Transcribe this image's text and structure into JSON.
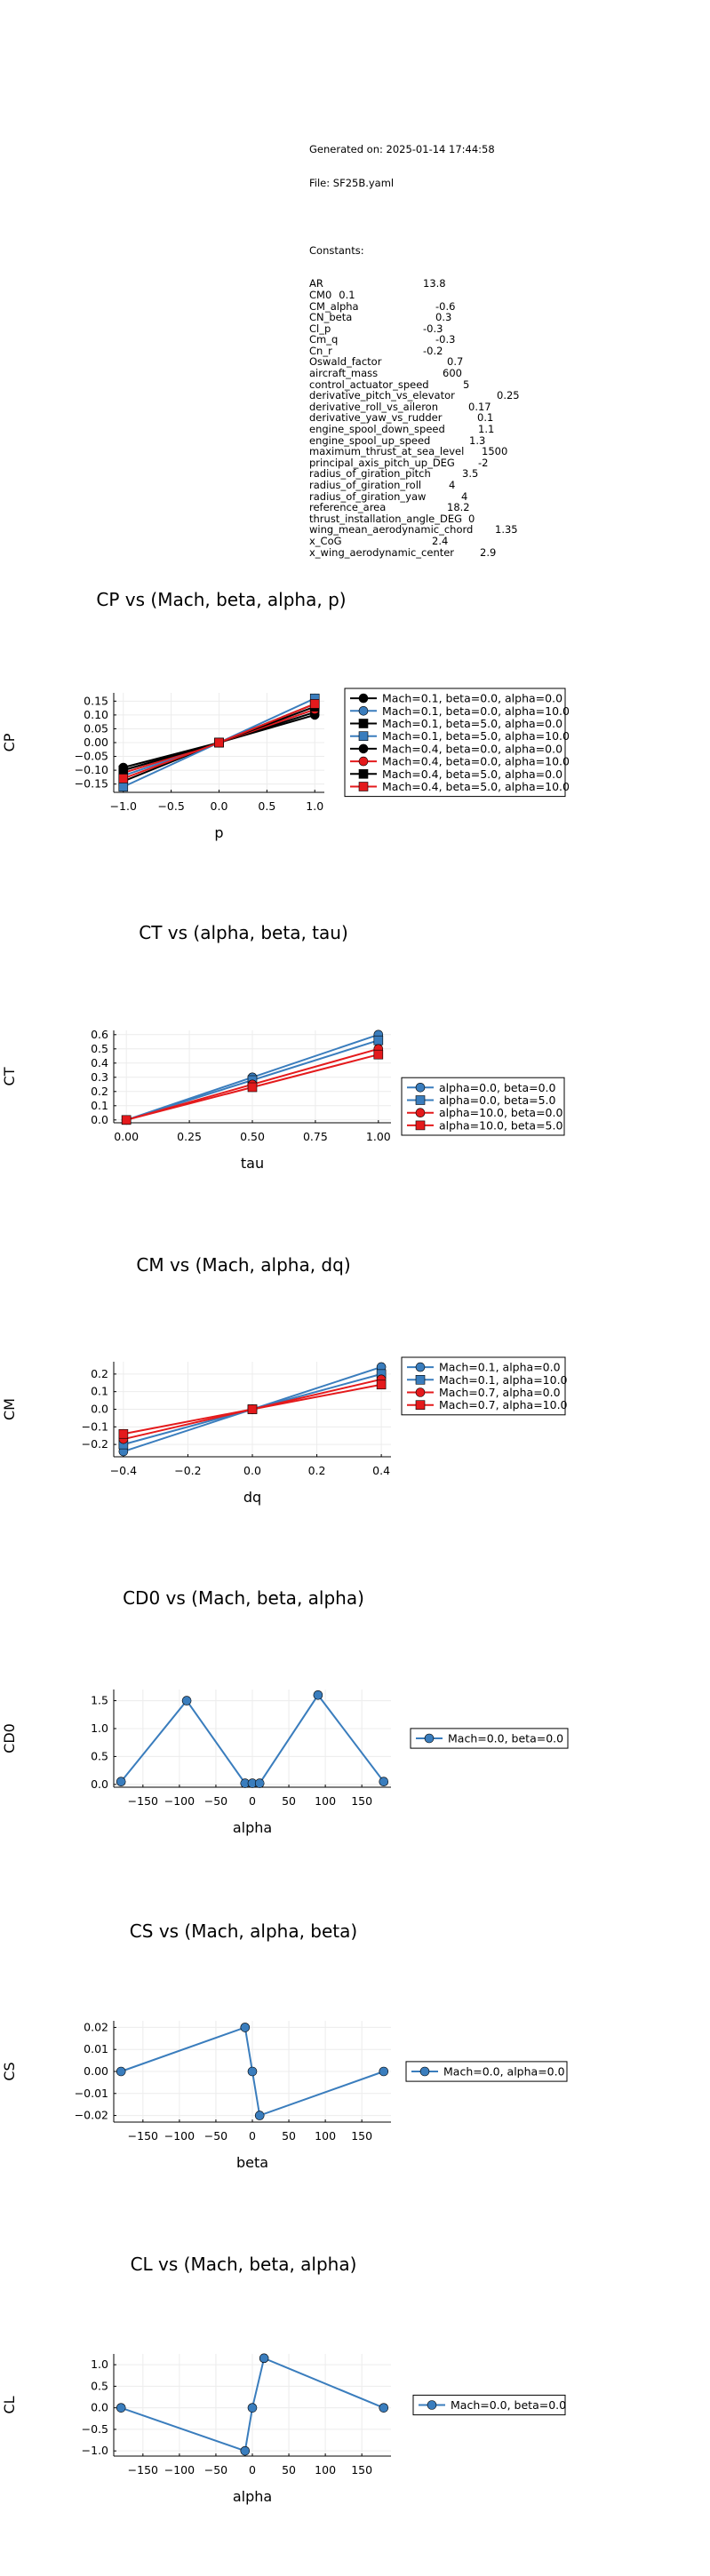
{
  "header": {
    "generated_line": "Generated on: 2025-01-14 17:44:58",
    "file_line": "File: SF25B.yaml",
    "constants_title": "Constants:",
    "constants": [
      {
        "name": "AR",
        "value": "13.8"
      },
      {
        "name": "CM0",
        "value": "0.1"
      },
      {
        "name": "CM_alpha",
        "value": "-0.6"
      },
      {
        "name": "CN_beta",
        "value": "0.3"
      },
      {
        "name": "Cl_p",
        "value": "-0.3"
      },
      {
        "name": "Cm_q",
        "value": "-0.3"
      },
      {
        "name": "Cn_r",
        "value": "-0.2"
      },
      {
        "name": "Oswald_factor",
        "value": "0.7"
      },
      {
        "name": "aircraft_mass",
        "value": "600"
      },
      {
        "name": "control_actuator_speed",
        "value": "5"
      },
      {
        "name": "derivative_pitch_vs_elevator",
        "value": "0.25"
      },
      {
        "name": "derivative_roll_vs_aileron",
        "value": "0.17"
      },
      {
        "name": "derivative_yaw_vs_rudder",
        "value": "0.1"
      },
      {
        "name": "engine_spool_down_speed",
        "value": "1.1"
      },
      {
        "name": "engine_spool_up_speed",
        "value": "1.3"
      },
      {
        "name": "maximum_thrust_at_sea_level",
        "value": "1500"
      },
      {
        "name": "principal_axis_pitch_up_DEG",
        "value": "-2"
      },
      {
        "name": "radius_of_giration_pitch",
        "value": "3.5"
      },
      {
        "name": "radius_of_giration_roll",
        "value": "4"
      },
      {
        "name": "radius_of_giration_yaw",
        "value": "4"
      },
      {
        "name": "reference_area",
        "value": "18.2"
      },
      {
        "name": "thrust_installation_angle_DEG",
        "value": "0"
      },
      {
        "name": "wing_mean_aerodynamic_chord",
        "value": "1.35"
      },
      {
        "name": "x_CoG",
        "value": "2.4"
      },
      {
        "name": "x_wing_aerodynamic_center",
        "value": "2.9"
      }
    ]
  },
  "colors": {
    "blue": "#3a7dbd",
    "red": "#e41a1c",
    "grid": "#ececec"
  },
  "chart_data": [
    {
      "type": "line",
      "title": "CP vs (Mach, beta, alpha, p)",
      "xlabel": "p",
      "ylabel": "CP",
      "xlim": [
        -1.1,
        1.1
      ],
      "ylim": [
        -0.18,
        0.18
      ],
      "xticks": [
        -1.0,
        -0.5,
        0.0,
        0.5,
        1.0
      ],
      "xtick_labels": [
        "−1.0",
        "−0.5",
        "0.0",
        "0.5",
        "1.0"
      ],
      "yticks": [
        -0.15,
        -0.1,
        -0.05,
        0.0,
        0.05,
        0.1,
        0.15
      ],
      "ytick_labels": [
        "−0.15",
        "−0.10",
        "−0.05",
        "0.00",
        "0.05",
        "0.10",
        "0.15"
      ],
      "legend": "outside-right-top",
      "x": [
        -1.0,
        0.0,
        1.0
      ],
      "series": [
        {
          "name": "Mach=0.1, beta=0.0, alpha=0.0",
          "color": "#000000",
          "marker": "circle",
          "values": [
            -0.1,
            0.0,
            0.1
          ]
        },
        {
          "name": "Mach=0.1, beta=0.0, alpha=10.0",
          "color": "#3a7dbd",
          "marker": "circle",
          "values": [
            -0.12,
            0.0,
            0.12
          ]
        },
        {
          "name": "Mach=0.1, beta=5.0, alpha=0.0",
          "color": "#000000",
          "marker": "square",
          "values": [
            -0.14,
            0.0,
            0.14
          ]
        },
        {
          "name": "Mach=0.1, beta=5.0, alpha=10.0",
          "color": "#3a7dbd",
          "marker": "square",
          "values": [
            -0.16,
            0.0,
            0.16
          ]
        },
        {
          "name": "Mach=0.4, beta=0.0, alpha=0.0",
          "color": "#000000",
          "marker": "circle",
          "values": [
            -0.09,
            0.0,
            0.11
          ]
        },
        {
          "name": "Mach=0.4, beta=0.0, alpha=10.0",
          "color": "#e41a1c",
          "marker": "circle",
          "values": [
            -0.11,
            0.0,
            0.12
          ]
        },
        {
          "name": "Mach=0.4, beta=5.0, alpha=0.0",
          "color": "#000000",
          "marker": "square",
          "values": [
            -0.1,
            0.0,
            0.13
          ]
        },
        {
          "name": "Mach=0.4, beta=5.0, alpha=10.0",
          "color": "#e41a1c",
          "marker": "square",
          "values": [
            -0.13,
            0.0,
            0.14
          ]
        }
      ]
    },
    {
      "type": "line",
      "title": "CT vs (alpha, beta, tau)",
      "xlabel": "tau",
      "ylabel": "CT",
      "xlim": [
        -0.05,
        1.05
      ],
      "ylim": [
        -0.02,
        0.63
      ],
      "xticks": [
        0.0,
        0.25,
        0.5,
        0.75,
        1.0
      ],
      "xtick_labels": [
        "0.00",
        "0.25",
        "0.50",
        "0.75",
        "1.00"
      ],
      "yticks": [
        0.0,
        0.1,
        0.2,
        0.3,
        0.4,
        0.5,
        0.6
      ],
      "ytick_labels": [
        "0.0",
        "0.1",
        "0.2",
        "0.3",
        "0.4",
        "0.5",
        "0.6"
      ],
      "legend": "outside-right-bottom",
      "x": [
        0.0,
        0.5,
        1.0
      ],
      "series": [
        {
          "name": "alpha=0.0, beta=0.0",
          "color": "#3a7dbd",
          "marker": "circle",
          "values": [
            0.0,
            0.3,
            0.6
          ]
        },
        {
          "name": "alpha=0.0, beta=5.0",
          "color": "#3a7dbd",
          "marker": "square",
          "values": [
            0.0,
            0.28,
            0.56
          ]
        },
        {
          "name": "alpha=10.0, beta=0.0",
          "color": "#e41a1c",
          "marker": "circle",
          "values": [
            0.0,
            0.25,
            0.5
          ]
        },
        {
          "name": "alpha=10.0, beta=5.0",
          "color": "#e41a1c",
          "marker": "square",
          "values": [
            0.0,
            0.23,
            0.46
          ]
        }
      ]
    },
    {
      "type": "line",
      "title": "CM vs (Mach, alpha, dq)",
      "xlabel": "dq",
      "ylabel": "CM",
      "xlim": [
        -0.43,
        0.43
      ],
      "ylim": [
        -0.27,
        0.27
      ],
      "xticks": [
        -0.4,
        -0.2,
        0.0,
        0.2,
        0.4
      ],
      "xtick_labels": [
        "−0.4",
        "−0.2",
        "0.0",
        "0.2",
        "0.4"
      ],
      "yticks": [
        -0.2,
        -0.1,
        0.0,
        0.1,
        0.2
      ],
      "ytick_labels": [
        "−0.2",
        "−0.1",
        "0.0",
        "0.1",
        "0.2"
      ],
      "legend": "outside-right-top",
      "x": [
        -0.4,
        0.0,
        0.4
      ],
      "series": [
        {
          "name": "Mach=0.1, alpha=0.0",
          "color": "#3a7dbd",
          "marker": "circle",
          "values": [
            -0.24,
            0.0,
            0.24
          ]
        },
        {
          "name": "Mach=0.1, alpha=10.0",
          "color": "#3a7dbd",
          "marker": "square",
          "values": [
            -0.2,
            0.0,
            0.2
          ]
        },
        {
          "name": "Mach=0.7, alpha=0.0",
          "color": "#e41a1c",
          "marker": "circle",
          "values": [
            -0.17,
            0.0,
            0.17
          ]
        },
        {
          "name": "Mach=0.7, alpha=10.0",
          "color": "#e41a1c",
          "marker": "square",
          "values": [
            -0.14,
            0.0,
            0.14
          ]
        }
      ]
    },
    {
      "type": "line",
      "title": "CD0 vs (Mach, beta, alpha)",
      "xlabel": "alpha",
      "ylabel": "CD0",
      "xlim": [
        -190,
        190
      ],
      "ylim": [
        -0.05,
        1.7
      ],
      "xticks": [
        -150,
        -100,
        -50,
        0,
        50,
        100,
        150
      ],
      "xtick_labels": [
        "−150",
        "−100",
        "−50",
        "0",
        "50",
        "100",
        "150"
      ],
      "yticks": [
        0.0,
        0.5,
        1.0,
        1.5
      ],
      "ytick_labels": [
        "0.0",
        "0.5",
        "1.0",
        "1.5"
      ],
      "legend": "outside-right-center",
      "x": [
        -180,
        -90,
        -10,
        0,
        10,
        90,
        180
      ],
      "series": [
        {
          "name": "Mach=0.0, beta=0.0",
          "color": "#3a7dbd",
          "marker": "circle",
          "values": [
            0.05,
            1.5,
            0.02,
            0.02,
            0.02,
            1.6,
            0.05
          ]
        }
      ]
    },
    {
      "type": "line",
      "title": "CS vs (Mach, alpha, beta)",
      "xlabel": "beta",
      "ylabel": "CS",
      "xlim": [
        -190,
        190
      ],
      "ylim": [
        -0.023,
        0.023
      ],
      "xticks": [
        -150,
        -100,
        -50,
        0,
        50,
        100,
        150
      ],
      "xtick_labels": [
        "−150",
        "−100",
        "−50",
        "0",
        "50",
        "100",
        "150"
      ],
      "yticks": [
        -0.02,
        -0.01,
        0.0,
        0.01,
        0.02
      ],
      "ytick_labels": [
        "−0.02",
        "−0.01",
        "0.00",
        "0.01",
        "0.02"
      ],
      "legend": "outside-right-center",
      "x": [
        -180,
        -10,
        0,
        10,
        180
      ],
      "series": [
        {
          "name": "Mach=0.0, alpha=0.0",
          "color": "#3a7dbd",
          "marker": "circle",
          "values": [
            0.0,
            0.02,
            0.0,
            -0.02,
            0.0
          ]
        }
      ]
    },
    {
      "type": "line",
      "title": "CL vs (Mach, beta, alpha)",
      "xlabel": "alpha",
      "ylabel": "CL",
      "xlim": [
        -190,
        190
      ],
      "ylim": [
        -1.12,
        1.25
      ],
      "xticks": [
        -150,
        -100,
        -50,
        0,
        50,
        100,
        150
      ],
      "xtick_labels": [
        "−150",
        "−100",
        "−50",
        "0",
        "50",
        "100",
        "150"
      ],
      "yticks": [
        -1.0,
        -0.5,
        0.0,
        0.5,
        1.0
      ],
      "ytick_labels": [
        "−1.0",
        "−0.5",
        "0.0",
        "0.5",
        "1.0"
      ],
      "legend": "outside-right-center",
      "x": [
        -180,
        -10,
        0,
        16,
        180
      ],
      "series": [
        {
          "name": "Mach=0.0, beta=0.0",
          "color": "#3a7dbd",
          "marker": "circle",
          "values": [
            0.0,
            -1.0,
            0.0,
            1.15,
            0.0
          ]
        }
      ]
    }
  ]
}
